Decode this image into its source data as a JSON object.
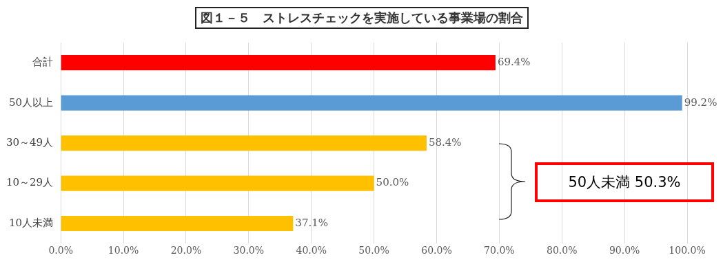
{
  "chart_data": {
    "type": "bar",
    "orientation": "horizontal",
    "title": "図１－５　ストレスチェックを実施している事業場の割合",
    "categories": [
      "合計",
      "50人以上",
      "30～49人",
      "10～29人",
      "10人未満"
    ],
    "values": [
      69.4,
      99.2,
      58.4,
      50.0,
      37.1
    ],
    "colors": [
      "#ff0000",
      "#5b9bd5",
      "#ffc000",
      "#ffc000",
      "#ffc000"
    ],
    "value_labels": [
      "69.4%",
      "99.2%",
      "58.4%",
      "50.0%",
      "37.1%"
    ],
    "xlim": [
      0,
      100
    ],
    "xticks": [
      {
        "value": 0,
        "label": "0.0%"
      },
      {
        "value": 10,
        "label": "10.0%"
      },
      {
        "value": 20,
        "label": "20.0%"
      },
      {
        "value": 30,
        "label": "30.0%"
      },
      {
        "value": 40,
        "label": "40.0%"
      },
      {
        "value": 50,
        "label": "50.0%"
      },
      {
        "value": 60,
        "label": "60.0%"
      },
      {
        "value": 70,
        "label": "70.0%"
      },
      {
        "value": 80,
        "label": "80.0%"
      },
      {
        "value": 90,
        "label": "90.0%"
      },
      {
        "value": 100,
        "label": "100.0%"
      }
    ],
    "grid": "x",
    "legend": false,
    "annotations": [
      "50人未満 50.3%"
    ]
  }
}
